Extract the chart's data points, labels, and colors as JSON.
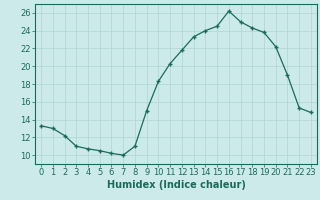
{
  "x": [
    0,
    1,
    2,
    3,
    4,
    5,
    6,
    7,
    8,
    9,
    10,
    11,
    12,
    13,
    14,
    15,
    16,
    17,
    18,
    19,
    20,
    21,
    22,
    23
  ],
  "y": [
    13.3,
    13.0,
    12.2,
    11.0,
    10.7,
    10.5,
    10.2,
    10.0,
    11.0,
    15.0,
    18.3,
    20.3,
    21.8,
    23.3,
    24.0,
    24.5,
    26.2,
    25.0,
    24.3,
    23.8,
    22.2,
    19.0,
    15.3,
    14.8
  ],
  "line_color": "#1a6b5a",
  "marker": "P",
  "marker_size": 2.5,
  "bg_color": "#cceaea",
  "grid_color": "#b0d4d4",
  "xlabel": "Humidex (Indice chaleur)",
  "ylim": [
    9,
    27
  ],
  "yticks": [
    10,
    12,
    14,
    16,
    18,
    20,
    22,
    24,
    26
  ],
  "xlim": [
    -0.5,
    23.5
  ],
  "xticks": [
    0,
    1,
    2,
    3,
    4,
    5,
    6,
    7,
    8,
    9,
    10,
    11,
    12,
    13,
    14,
    15,
    16,
    17,
    18,
    19,
    20,
    21,
    22,
    23
  ],
  "label_fontsize": 7,
  "tick_fontsize": 6
}
